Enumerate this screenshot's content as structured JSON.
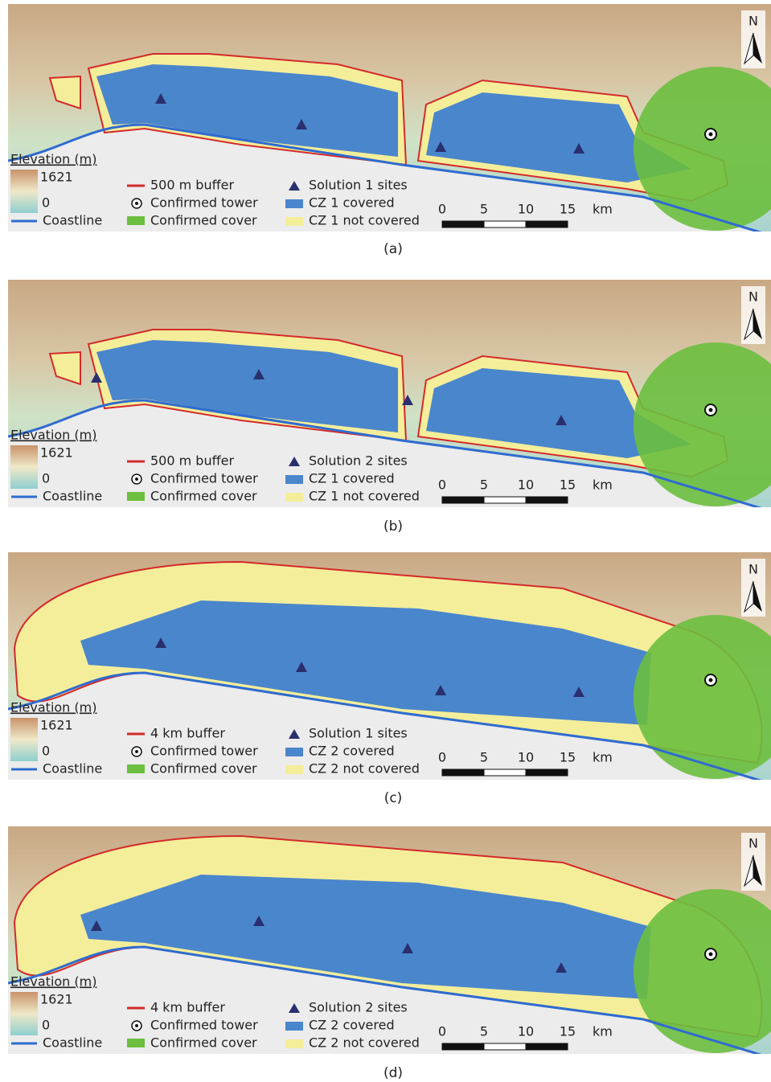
{
  "panels": [
    {
      "caption": "(a)",
      "north": "N",
      "elevation_title": "Elevation (m)",
      "elevation_max": "1621",
      "elevation_min": "0",
      "coastline": "Coastline",
      "buffer": "500 m buffer",
      "tower": "Confirmed tower",
      "cover": "Confirmed cover",
      "sites": "Solution 1 sites",
      "covered": "CZ 1 covered",
      "not_covered": "CZ 1 not covered",
      "scale": [
        "0",
        "5",
        "10",
        "15",
        "km"
      ]
    },
    {
      "caption": "(b)",
      "north": "N",
      "elevation_title": "Elevation (m)",
      "elevation_max": "1621",
      "elevation_min": "0",
      "coastline": "Coastline",
      "buffer": "500 m buffer",
      "tower": "Confirmed tower",
      "cover": "Confirmed cover",
      "sites": "Solution 2 sites",
      "covered": "CZ 1 covered",
      "not_covered": "CZ 1 not covered",
      "scale": [
        "0",
        "5",
        "10",
        "15",
        "km"
      ]
    },
    {
      "caption": "(c)",
      "north": "N",
      "elevation_title": "Elevation (m)",
      "elevation_max": "1621",
      "elevation_min": "0",
      "coastline": "Coastline",
      "buffer": "4 km buffer",
      "tower": "Confirmed tower",
      "cover": "Confirmed cover",
      "sites": "Solution 1 sites",
      "covered": "CZ 2 covered",
      "not_covered": "CZ 2 not covered",
      "scale": [
        "0",
        "5",
        "10",
        "15",
        "km"
      ]
    },
    {
      "caption": "(d)",
      "north": "N",
      "elevation_title": "Elevation (m)",
      "elevation_max": "1621",
      "elevation_min": "0",
      "coastline": "Coastline",
      "buffer": "4 km buffer",
      "tower": "Confirmed tower",
      "cover": "Confirmed cover",
      "sites": "Solution 2 sites",
      "covered": "CZ 2 covered",
      "not_covered": "CZ 2 not covered",
      "scale": [
        "0",
        "5",
        "10",
        "15",
        "km"
      ]
    }
  ]
}
